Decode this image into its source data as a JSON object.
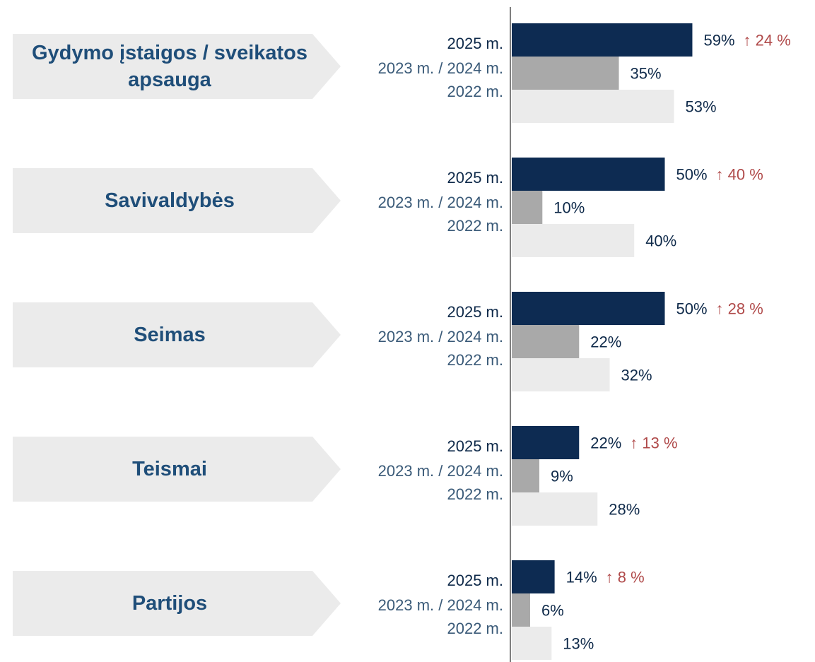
{
  "chart_data": {
    "type": "bar",
    "orientation": "horizontal",
    "categories": [
      "Gydymo įstaigos / sveikatos apsauga",
      "Savivaldybės",
      "Seimas",
      "Teismai",
      "Partijos"
    ],
    "series": [
      {
        "name": "2025 m.",
        "color": "#0d2b52",
        "values": [
          59,
          50,
          50,
          22,
          14
        ],
        "value_labels": [
          "59%",
          "50%",
          "50%",
          "22%",
          "14%"
        ]
      },
      {
        "name": "2023 m. / 2024 m.",
        "color": "#a9a9a9",
        "values": [
          35,
          10,
          22,
          9,
          6
        ],
        "value_labels": [
          "35%",
          "10%",
          "22%",
          "9%",
          "6%"
        ]
      },
      {
        "name": "2022 m.",
        "color": "#ebebeb",
        "values": [
          53,
          40,
          32,
          28,
          13
        ],
        "value_labels": [
          "53%",
          "40%",
          "32%",
          "28%",
          "13%"
        ]
      }
    ],
    "annotations": [
      "↑ 24 %",
      "↑ 40 %",
      "↑ 28 %",
      "↑ 13 %",
      "↑ 8 %"
    ],
    "xlim": [
      0,
      100
    ]
  }
}
